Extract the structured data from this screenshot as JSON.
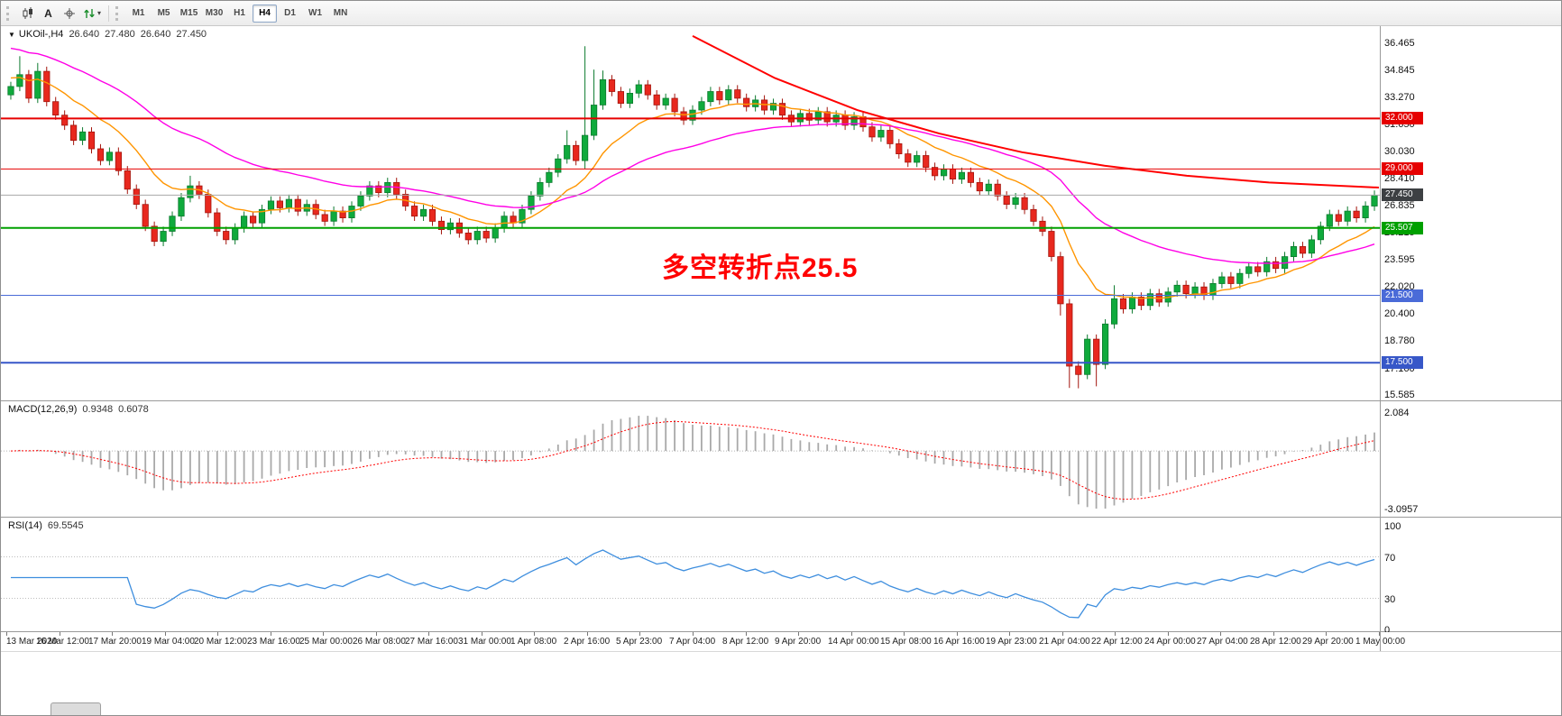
{
  "toolbar": {
    "buttons": [
      {
        "id": "chart-type",
        "icon": "candlestick-chart-icon",
        "label": ""
      },
      {
        "id": "text-tool",
        "icon": "",
        "label": "A"
      },
      {
        "id": "crosshair",
        "icon": "crosshair-icon",
        "label": ""
      },
      {
        "id": "scroll-mode",
        "icon": "green-arrows-icon",
        "label": "",
        "dropdown": true
      }
    ],
    "timeframes": [
      {
        "label": "M1",
        "active": false
      },
      {
        "label": "M5",
        "active": false
      },
      {
        "label": "M15",
        "active": false
      },
      {
        "label": "M30",
        "active": false
      },
      {
        "label": "H1",
        "active": false
      },
      {
        "label": "H4",
        "active": true
      },
      {
        "label": "D1",
        "active": false
      },
      {
        "label": "W1",
        "active": false
      },
      {
        "label": "MN",
        "active": false
      }
    ]
  },
  "chart": {
    "title_symbol": "UKOil-,H4",
    "ohlc": {
      "open": "26.640",
      "high": "27.480",
      "low": "26.640",
      "close": "27.450"
    },
    "annotation": {
      "text": "多空转折点25.5",
      "color": "#ff0000"
    },
    "price_axis_labels": [
      "36.465",
      "34.845",
      "33.270",
      "31.650",
      "30.030",
      "28.410",
      "26.835",
      "25.215",
      "23.595",
      "22.020",
      "20.400",
      "18.780",
      "17.160",
      "15.585"
    ],
    "axis_top_price": 36.465,
    "axis_bottom_price": 15.585,
    "levels": [
      {
        "price": 32.0,
        "label": "32.000",
        "line_color": "#e60000",
        "line_width": 2,
        "tag_bg": "#e60000"
      },
      {
        "price": 29.0,
        "label": "29.000",
        "line_color": "#e60000",
        "line_width": 1,
        "tag_bg": "#e60000"
      },
      {
        "price": 27.45,
        "label": "27.450",
        "line_color": "#a8a8a8",
        "line_width": 1,
        "tag_bg": "#3d4043",
        "is_current_price": true
      },
      {
        "price": 25.507,
        "label": "25.507",
        "line_color": "#00a000",
        "line_width": 2,
        "tag_bg": "#00a000"
      },
      {
        "price": 21.5,
        "label": "21.500",
        "line_color": "#4a6bd8",
        "line_width": 1,
        "tag_bg": "#4a6bd8"
      },
      {
        "price": 17.5,
        "label": "17.500",
        "line_color": "#3757c8",
        "line_width": 2,
        "tag_bg": "#3757c8"
      }
    ]
  },
  "chart_data": {
    "type": "candlestick",
    "symbol": "UKOil-",
    "period": "H4",
    "ylim": [
      15.585,
      36.465
    ],
    "grid": false,
    "up_color": "#0faa3c",
    "down_color": "#e8281e",
    "first_open": 33.4,
    "closes": [
      33.9,
      34.6,
      33.2,
      34.8,
      33.0,
      32.2,
      31.6,
      30.7,
      31.2,
      30.2,
      29.5,
      30.0,
      28.9,
      27.8,
      26.9,
      25.6,
      24.7,
      25.3,
      26.2,
      27.3,
      28.0,
      27.5,
      26.4,
      25.3,
      24.8,
      25.5,
      26.2,
      25.8,
      26.6,
      27.1,
      26.7,
      27.2,
      26.5,
      26.9,
      26.3,
      25.9,
      26.5,
      26.1,
      26.8,
      27.4,
      28.0,
      27.6,
      28.2,
      27.5,
      26.8,
      26.2,
      26.6,
      25.9,
      25.4,
      25.8,
      25.2,
      24.8,
      25.3,
      24.9,
      25.5,
      26.2,
      25.8,
      26.6,
      27.4,
      28.2,
      28.8,
      29.6,
      30.4,
      29.5,
      31.0,
      32.8,
      34.3,
      33.6,
      32.9,
      33.5,
      34.0,
      33.4,
      32.8,
      33.2,
      32.4,
      31.9,
      32.5,
      33.0,
      33.6,
      33.1,
      33.7,
      33.2,
      32.7,
      33.1,
      32.5,
      32.9,
      32.2,
      31.8,
      32.3,
      31.9,
      32.4,
      31.8,
      32.2,
      31.6,
      32.1,
      31.5,
      30.9,
      31.3,
      30.5,
      29.9,
      29.4,
      29.8,
      29.1,
      28.6,
      29.0,
      28.4,
      28.8,
      28.2,
      27.7,
      28.1,
      27.4,
      26.9,
      27.3,
      26.6,
      25.9,
      25.3,
      23.8,
      21.0,
      17.3,
      16.8,
      18.9,
      17.4,
      19.8,
      21.3,
      20.7,
      21.4,
      20.9,
      21.6,
      21.1,
      21.7,
      22.1,
      21.6,
      22.0,
      21.5,
      22.2,
      22.6,
      22.2,
      22.8,
      23.2,
      22.9,
      23.5,
      23.1,
      23.8,
      24.4,
      24.0,
      24.8,
      25.6,
      26.3,
      25.9,
      26.5,
      26.1,
      26.8,
      27.45
    ],
    "wick_overrides": {
      "1": {
        "h": 35.7
      },
      "3": {
        "h": 35.3
      },
      "20": {
        "h": 28.6
      },
      "62": {
        "h": 31.3
      },
      "64": {
        "h": 36.29,
        "l": 29.0
      },
      "65": {
        "h": 34.9
      },
      "66": {
        "h": 34.85
      },
      "117": {
        "l": 20.3
      },
      "118": {
        "l": 16.0
      },
      "119": {
        "l": 15.98
      },
      "121": {
        "l": 16.1
      },
      "123": {
        "h": 22.1
      }
    },
    "overlays": [
      {
        "name": "ema-fast",
        "type": "ema",
        "period": 12,
        "seed": 34.5,
        "color": "#ff9500"
      },
      {
        "name": "ema-slow",
        "type": "ema",
        "period": 34,
        "seed": 36.3,
        "color": "#ff00e6"
      },
      {
        "name": "long-downtrend-ma",
        "type": "curve",
        "color": "#ff0000",
        "points": [
          [
            0.5,
            36.9
          ],
          [
            0.56,
            34.4
          ],
          [
            0.62,
            32.5
          ],
          [
            0.68,
            31.1
          ],
          [
            0.74,
            30.0
          ],
          [
            0.8,
            29.2
          ],
          [
            0.86,
            28.6
          ],
          [
            0.92,
            28.2
          ],
          [
            1.0,
            27.9
          ]
        ]
      }
    ],
    "x_labels": [
      "13 Mar 2020",
      "16 Mar 12:00",
      "17 Mar 20:00",
      "19 Mar 04:00",
      "20 Mar 12:00",
      "23 Mar 16:00",
      "25 Mar 00:00",
      "26 Mar 08:00",
      "27 Mar 16:00",
      "31 Mar 00:00",
      "1 Apr 08:00",
      "2 Apr 16:00",
      "5 Apr 23:00",
      "7 Apr 04:00",
      "8 Apr 12:00",
      "9 Apr 20:00",
      "14 Apr 00:00",
      "15 Apr 08:00",
      "16 Apr 16:00",
      "19 Apr 23:00",
      "21 Apr 04:00",
      "22 Apr 12:00",
      "24 Apr 00:00",
      "27 Apr 04:00",
      "28 Apr 12:00",
      "29 Apr 20:00",
      "1 May 00:00"
    ]
  },
  "macd": {
    "name": "MACD(12,26,9)",
    "value_main": "0.9348",
    "value_signal": "0.6078",
    "fast": 12,
    "slow": 26,
    "signal": 9,
    "scale_max": "2.084",
    "scale_min": "-3.0957",
    "scale_max_v": 2.084,
    "scale_min_v": -3.0957,
    "hist_color": "#a9a9a9",
    "signal_color": "#ff0000"
  },
  "rsi": {
    "name": "RSI(14)",
    "value": "69.5545",
    "period": 14,
    "scale_labels": [
      "100",
      "70",
      "30",
      "0"
    ],
    "levels": [
      70,
      30
    ],
    "color": "#3e8ede"
  }
}
